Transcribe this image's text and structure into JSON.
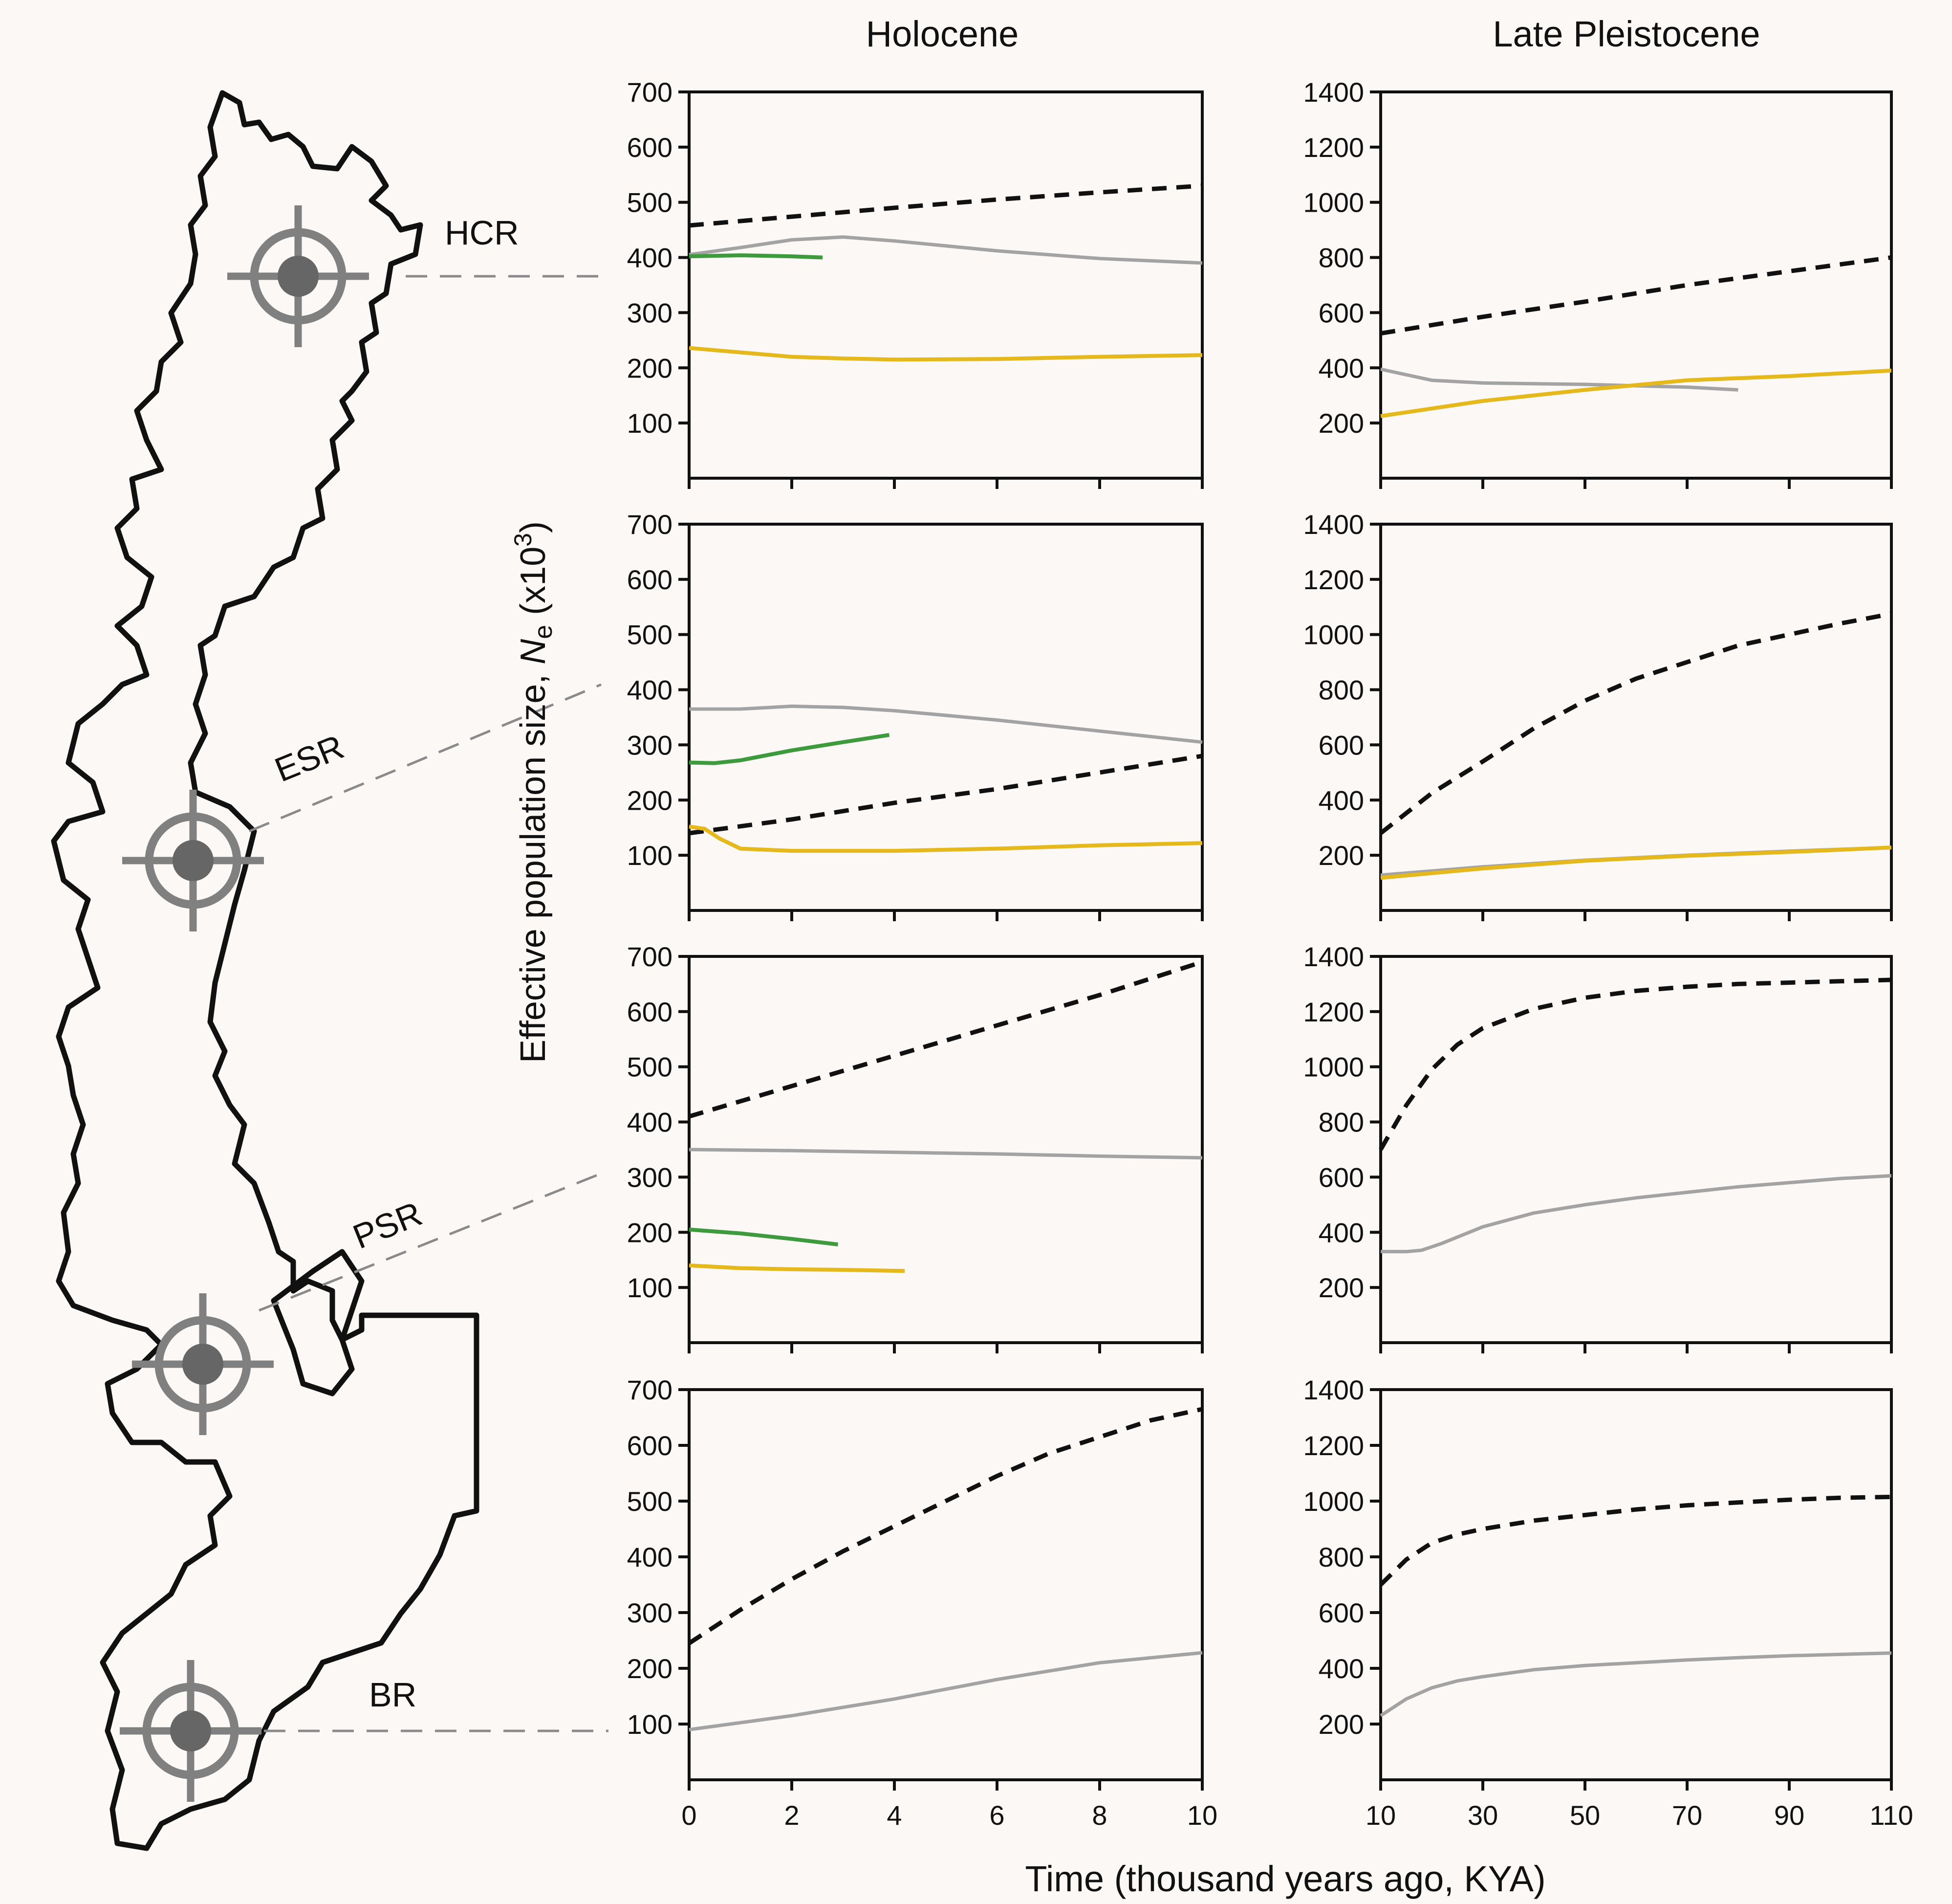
{
  "figure": {
    "column_titles": [
      "Holocene",
      "Late Pleistocene"
    ],
    "ylabel_main": "Effective population size, ",
    "ylabel_italic": "N",
    "ylabel_sub": "e",
    "ylabel_tail": " (x10",
    "ylabel_sup": "3",
    "ylabel_close": ")",
    "xlabel": "Time (thousand years ago, KYA)",
    "regions": [
      "HCR",
      "ESR",
      "PSR",
      "BR"
    ]
  },
  "colors": {
    "dashed": "#111111",
    "gray": "#a3a3a3",
    "green": "#3d9a3d",
    "yellow": "#e5b81c",
    "axis": "#111111",
    "map": "#111111",
    "marker": "#808080"
  },
  "chart_data": [
    {
      "type": "line",
      "region": "HCR",
      "column": "Holocene",
      "xlim": [
        0,
        10
      ],
      "ylim": [
        0,
        700
      ],
      "xticks": [
        0,
        2,
        4,
        6,
        8,
        10
      ],
      "yticks": [
        100,
        200,
        300,
        400,
        500,
        600,
        700
      ],
      "show_xticklabels": false,
      "series": [
        {
          "style": "dashed",
          "x": [
            0,
            2,
            4,
            6,
            8,
            10
          ],
          "y": [
            458,
            474,
            490,
            505,
            518,
            530
          ]
        },
        {
          "style": "gray",
          "x": [
            0,
            1,
            2,
            3,
            4,
            6,
            8,
            10
          ],
          "y": [
            405,
            418,
            432,
            437,
            430,
            412,
            398,
            390
          ]
        },
        {
          "style": "green",
          "x": [
            0,
            1,
            2,
            2.6
          ],
          "y": [
            402,
            404,
            402,
            400
          ]
        },
        {
          "style": "yellow",
          "x": [
            0,
            1,
            2,
            3,
            4,
            6,
            8,
            10
          ],
          "y": [
            236,
            228,
            220,
            217,
            215,
            216,
            220,
            223
          ]
        }
      ]
    },
    {
      "type": "line",
      "region": "HCR",
      "column": "Late Pleistocene",
      "xlim": [
        10,
        110
      ],
      "ylim": [
        0,
        1400
      ],
      "xticks": [
        10,
        30,
        50,
        70,
        90,
        110
      ],
      "yticks": [
        200,
        400,
        600,
        800,
        1000,
        1200,
        1400
      ],
      "show_xticklabels": false,
      "series": [
        {
          "style": "dashed",
          "x": [
            10,
            30,
            50,
            70,
            90,
            110
          ],
          "y": [
            525,
            585,
            640,
            700,
            750,
            800
          ]
        },
        {
          "style": "gray",
          "x": [
            10,
            20,
            30,
            50,
            70,
            80
          ],
          "y": [
            395,
            355,
            345,
            340,
            330,
            320
          ]
        },
        {
          "style": "yellow",
          "x": [
            10,
            30,
            50,
            70,
            90,
            110
          ],
          "y": [
            225,
            280,
            320,
            355,
            370,
            390
          ]
        }
      ]
    },
    {
      "type": "line",
      "region": "ESR",
      "column": "Holocene",
      "xlim": [
        0,
        10
      ],
      "ylim": [
        0,
        700
      ],
      "xticks": [
        0,
        2,
        4,
        6,
        8,
        10
      ],
      "yticks": [
        100,
        200,
        300,
        400,
        500,
        600,
        700
      ],
      "show_xticklabels": false,
      "series": [
        {
          "style": "gray",
          "x": [
            0,
            1,
            2,
            3,
            4,
            6,
            8,
            10
          ],
          "y": [
            365,
            365,
            370,
            368,
            362,
            345,
            325,
            305
          ]
        },
        {
          "style": "green",
          "x": [
            0,
            0.5,
            1,
            2,
            3,
            3.9
          ],
          "y": [
            268,
            267,
            272,
            290,
            305,
            318
          ]
        },
        {
          "style": "dashed",
          "x": [
            0,
            2,
            4,
            6,
            8,
            10
          ],
          "y": [
            140,
            165,
            195,
            220,
            250,
            280
          ]
        },
        {
          "style": "yellow",
          "x": [
            0,
            0.3,
            0.6,
            1,
            2,
            4,
            6,
            8,
            10
          ],
          "y": [
            152,
            148,
            130,
            112,
            108,
            108,
            112,
            118,
            122
          ]
        }
      ]
    },
    {
      "type": "line",
      "region": "ESR",
      "column": "Late Pleistocene",
      "xlim": [
        10,
        110
      ],
      "ylim": [
        0,
        1400
      ],
      "xticks": [
        10,
        30,
        50,
        70,
        90,
        110
      ],
      "yticks": [
        200,
        400,
        600,
        800,
        1000,
        1200,
        1400
      ],
      "show_xticklabels": false,
      "series": [
        {
          "style": "dashed",
          "x": [
            10,
            20,
            30,
            40,
            50,
            60,
            70,
            80,
            90,
            100,
            110
          ],
          "y": [
            280,
            425,
            540,
            660,
            760,
            840,
            900,
            960,
            1000,
            1040,
            1075
          ]
        },
        {
          "style": "gray",
          "x": [
            10,
            30,
            50,
            70,
            90,
            110
          ],
          "y": [
            128,
            158,
            182,
            200,
            215,
            228
          ]
        },
        {
          "style": "yellow",
          "x": [
            10,
            30,
            50,
            70,
            90,
            110
          ],
          "y": [
            118,
            152,
            180,
            198,
            212,
            228
          ]
        }
      ]
    },
    {
      "type": "line",
      "region": "PSR",
      "column": "Holocene",
      "xlim": [
        0,
        10
      ],
      "ylim": [
        0,
        700
      ],
      "xticks": [
        0,
        2,
        4,
        6,
        8,
        10
      ],
      "yticks": [
        100,
        200,
        300,
        400,
        500,
        600,
        700
      ],
      "show_xticklabels": false,
      "series": [
        {
          "style": "dashed",
          "x": [
            0,
            2,
            4,
            6,
            8,
            10
          ],
          "y": [
            410,
            465,
            520,
            575,
            630,
            690
          ]
        },
        {
          "style": "gray",
          "x": [
            0,
            2,
            4,
            6,
            8,
            10
          ],
          "y": [
            350,
            348,
            345,
            342,
            338,
            335
          ]
        },
        {
          "style": "green",
          "x": [
            0,
            1,
            2,
            2.9
          ],
          "y": [
            205,
            198,
            188,
            178
          ]
        },
        {
          "style": "yellow",
          "x": [
            0,
            1,
            2,
            3,
            4.2
          ],
          "y": [
            140,
            135,
            133,
            132,
            130
          ]
        }
      ]
    },
    {
      "type": "line",
      "region": "PSR",
      "column": "Late Pleistocene",
      "xlim": [
        10,
        110
      ],
      "ylim": [
        0,
        1400
      ],
      "xticks": [
        10,
        30,
        50,
        70,
        90,
        110
      ],
      "yticks": [
        200,
        400,
        600,
        800,
        1000,
        1200,
        1400
      ],
      "show_xticklabels": false,
      "series": [
        {
          "style": "dashed",
          "x": [
            10,
            15,
            20,
            25,
            30,
            40,
            50,
            60,
            70,
            80,
            90,
            100,
            110
          ],
          "y": [
            700,
            860,
            990,
            1080,
            1140,
            1210,
            1250,
            1275,
            1290,
            1300,
            1305,
            1310,
            1315
          ]
        },
        {
          "style": "gray",
          "x": [
            10,
            15,
            18,
            22,
            30,
            40,
            50,
            60,
            70,
            80,
            90,
            100,
            110
          ],
          "y": [
            330,
            330,
            335,
            360,
            420,
            470,
            500,
            525,
            545,
            565,
            580,
            595,
            605
          ]
        }
      ]
    },
    {
      "type": "line",
      "region": "BR",
      "column": "Holocene",
      "xlim": [
        0,
        10
      ],
      "ylim": [
        0,
        700
      ],
      "xticks": [
        0,
        2,
        4,
        6,
        8,
        10
      ],
      "yticks": [
        100,
        200,
        300,
        400,
        500,
        600,
        700
      ],
      "show_xticklabels": true,
      "series": [
        {
          "style": "dashed",
          "x": [
            0,
            1,
            2,
            3,
            4,
            5,
            6,
            7,
            8,
            9,
            10
          ],
          "y": [
            245,
            305,
            360,
            410,
            455,
            500,
            545,
            585,
            615,
            645,
            665
          ]
        },
        {
          "style": "gray",
          "x": [
            0,
            2,
            4,
            6,
            8,
            10
          ],
          "y": [
            90,
            115,
            145,
            180,
            210,
            228
          ]
        }
      ]
    },
    {
      "type": "line",
      "region": "BR",
      "column": "Late Pleistocene",
      "xlim": [
        10,
        110
      ],
      "ylim": [
        0,
        1400
      ],
      "xticks": [
        10,
        30,
        50,
        70,
        90,
        110
      ],
      "yticks": [
        200,
        400,
        600,
        800,
        1000,
        1200,
        1400
      ],
      "show_xticklabels": true,
      "series": [
        {
          "style": "dashed",
          "x": [
            10,
            15,
            20,
            25,
            30,
            40,
            50,
            60,
            70,
            80,
            90,
            100,
            110
          ],
          "y": [
            700,
            790,
            850,
            880,
            900,
            930,
            950,
            970,
            985,
            995,
            1005,
            1012,
            1015
          ]
        },
        {
          "style": "gray",
          "x": [
            10,
            15,
            20,
            25,
            30,
            40,
            50,
            60,
            70,
            80,
            90,
            100,
            110
          ],
          "y": [
            230,
            290,
            330,
            355,
            370,
            395,
            410,
            420,
            430,
            438,
            445,
            450,
            455
          ]
        }
      ]
    }
  ]
}
